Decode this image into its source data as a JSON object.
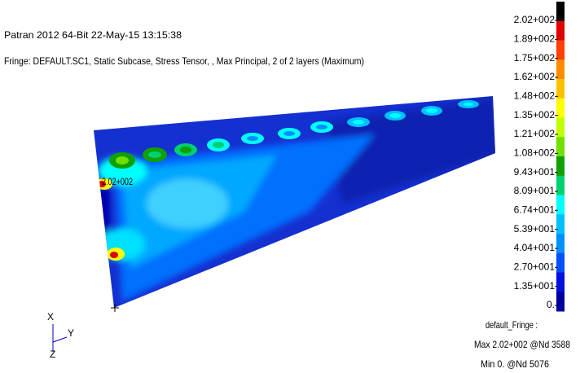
{
  "header": {
    "title": "Patran 2012 64-Bit 22-May-15 13:15:38",
    "subtitle": "Fringe: DEFAULT.SC1, Static Subcase, Stress Tensor, , Max Principal, 2 of 2 layers (Maximum)"
  },
  "legend": {
    "labels": [
      "2.02+002",
      "1.89+002",
      "1.75+002",
      "1.62+002",
      "1.48+002",
      "1.35+002",
      "1.21+002",
      "1.08+002",
      "9.43+001",
      "8.09+001",
      "6.74+001",
      "5.39+001",
      "4.04+001",
      "2.70+001",
      "1.35+001",
      "0."
    ],
    "colors": [
      "#000000",
      "#e00000",
      "#ff4000",
      "#ff8c00",
      "#ffc000",
      "#ffff00",
      "#c0ff00",
      "#70e000",
      "#10a000",
      "#00d070",
      "#00ffff",
      "#00c0ff",
      "#0090ff",
      "#0050ff",
      "#0010e0",
      "#0000a0"
    ]
  },
  "annotation": "2.02+002",
  "triad": {
    "x": "X",
    "y": "Y",
    "z": "Z"
  },
  "footer": {
    "line1": "default_Fringe :",
    "line2": "Max 2.02+002 @Nd 3588",
    "line3": "Min  0. @Nd 5076"
  }
}
